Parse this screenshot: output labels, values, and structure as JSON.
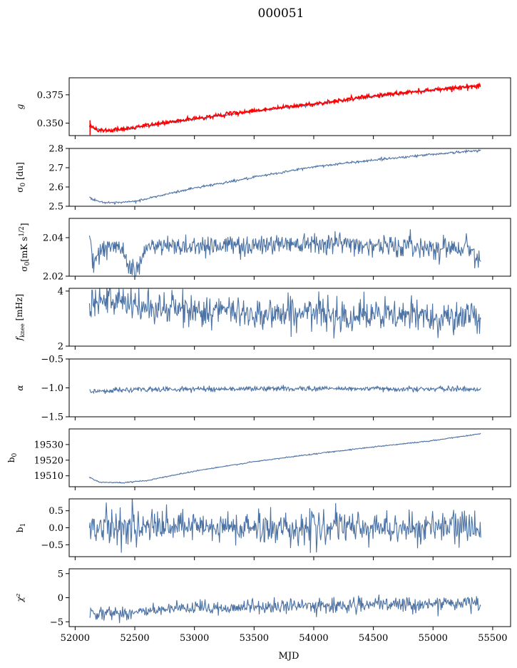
{
  "title": "000051",
  "chart_data": {
    "type": "line",
    "title": "000051",
    "xlabel": "MJD",
    "xlim": [
      51950,
      55650
    ],
    "xticks": [
      52000,
      52500,
      53000,
      53500,
      54000,
      54500,
      55000,
      55500
    ],
    "data_range": [
      52120,
      55400
    ],
    "series_colors": {
      "model": "#4c72a4",
      "fit": "#ff0000"
    },
    "panels": [
      {
        "id": "g",
        "ylabel": "g",
        "ylim": [
          0.339,
          0.39
        ],
        "yticks": [
          0.35,
          0.375
        ],
        "yticklabels": [
          "0.350",
          "0.375"
        ],
        "series": [
          {
            "color_key": "model",
            "anchors": [
              [
                52120,
                0.347
              ],
              [
                52180,
                0.3445
              ],
              [
                52280,
                0.3435
              ],
              [
                52400,
                0.344
              ],
              [
                52600,
                0.3475
              ],
              [
                53000,
                0.3535
              ],
              [
                53500,
                0.3605
              ],
              [
                54000,
                0.3665
              ],
              [
                54500,
                0.3735
              ],
              [
                55000,
                0.3795
              ],
              [
                55400,
                0.3835
              ]
            ],
            "noise": 0.0004
          },
          {
            "color_key": "fit",
            "anchors": [
              [
                52120,
                0.3475
              ],
              [
                52180,
                0.3445
              ],
              [
                52280,
                0.3435
              ],
              [
                52400,
                0.3445
              ],
              [
                52600,
                0.348
              ],
              [
                53000,
                0.354
              ],
              [
                53500,
                0.361
              ],
              [
                54000,
                0.367
              ],
              [
                54500,
                0.374
              ],
              [
                55000,
                0.3795
              ],
              [
                55400,
                0.383
              ]
            ],
            "noise": 0.0009
          }
        ]
      },
      {
        "id": "sigma0-du",
        "ylabel": "σ0 [du]",
        "ylim": [
          2.5,
          2.8
        ],
        "yticks": [
          2.5,
          2.6,
          2.7,
          2.8
        ],
        "yticklabels": [
          "2.5",
          "2.6",
          "2.7",
          "2.8"
        ],
        "series": [
          {
            "color_key": "model",
            "anchors": [
              [
                52120,
                2.545
              ],
              [
                52200,
                2.525
              ],
              [
                52300,
                2.515
              ],
              [
                52500,
                2.525
              ],
              [
                53000,
                2.595
              ],
              [
                53500,
                2.65
              ],
              [
                54000,
                2.705
              ],
              [
                54500,
                2.74
              ],
              [
                55000,
                2.77
              ],
              [
                55400,
                2.79
              ]
            ],
            "noise": 0.003
          }
        ]
      },
      {
        "id": "sigma0-mk",
        "ylabel": "σ0[mK s^1/2]",
        "ylim": [
          2.02,
          2.05
        ],
        "yticks": [
          2.02,
          2.04
        ],
        "yticklabels": [
          "2.02",
          "2.04"
        ],
        "series": [
          {
            "color_key": "model",
            "anchors": [
              [
                52120,
                2.041
              ],
              [
                52160,
                2.028
              ],
              [
                52250,
                2.035
              ],
              [
                52400,
                2.034
              ],
              [
                52500,
                2.021
              ],
              [
                52600,
                2.035
              ],
              [
                53000,
                2.036
              ],
              [
                53500,
                2.036
              ],
              [
                54000,
                2.038
              ],
              [
                54500,
                2.036
              ],
              [
                55000,
                2.035
              ],
              [
                55300,
                2.035
              ],
              [
                55400,
                2.028
              ]
            ],
            "noise": 0.0028
          }
        ]
      },
      {
        "id": "fknee",
        "ylabel": "fknee [mHz]",
        "ylim": [
          2,
          4.1
        ],
        "yticks": [
          2,
          4
        ],
        "yticklabels": [
          "2",
          "4"
        ],
        "series": [
          {
            "color_key": "model",
            "anchors": [
              [
                52120,
                3.8
              ],
              [
                52300,
                3.6
              ],
              [
                52600,
                3.4
              ],
              [
                53000,
                3.3
              ],
              [
                53500,
                3.2
              ],
              [
                54000,
                3.2
              ],
              [
                54500,
                3.1
              ],
              [
                55000,
                3.1
              ],
              [
                55400,
                3.0
              ]
            ],
            "noise": 0.3
          }
        ]
      },
      {
        "id": "alpha",
        "ylabel": "α",
        "ylim": [
          -1.5,
          -0.5
        ],
        "yticks": [
          -1.5,
          -1.0,
          -0.5
        ],
        "yticklabels": [
          "−1.5",
          "−1.0",
          "−0.5"
        ],
        "series": [
          {
            "color_key": "model",
            "anchors": [
              [
                52120,
                -1.06
              ],
              [
                52500,
                -1.03
              ],
              [
                53000,
                -1.02
              ],
              [
                54000,
                -1.01
              ],
              [
                55000,
                -1.02
              ],
              [
                55400,
                -1.02
              ]
            ],
            "noise": 0.022
          }
        ]
      },
      {
        "id": "b0",
        "ylabel": "b0",
        "ylim": [
          19503,
          19540
        ],
        "yticks": [
          19510,
          19520,
          19530
        ],
        "yticklabels": [
          "19510",
          "19520",
          "19530"
        ],
        "series": [
          {
            "color_key": "model",
            "anchors": [
              [
                52120,
                19509
              ],
              [
                52200,
                19506
              ],
              [
                52400,
                19505.5
              ],
              [
                52600,
                19507
              ],
              [
                53000,
                19513
              ],
              [
                53500,
                19519
              ],
              [
                54000,
                19524
              ],
              [
                54500,
                19528.5
              ],
              [
                55000,
                19532.5
              ],
              [
                55400,
                19537
              ]
            ],
            "noise": 0.18
          }
        ]
      },
      {
        "id": "b1",
        "ylabel": "b1",
        "ylim": [
          -0.85,
          0.85
        ],
        "yticks": [
          -0.5,
          0.0,
          0.5
        ],
        "yticklabels": [
          "−0.5",
          "0.0",
          "0.5"
        ],
        "series": [
          {
            "color_key": "model",
            "anchors": [
              [
                52120,
                0.05
              ],
              [
                53000,
                0.0
              ],
              [
                54000,
                0.0
              ],
              [
                55400,
                0.0
              ]
            ],
            "noise": 0.24
          }
        ]
      },
      {
        "id": "chi2",
        "ylabel": "χ²",
        "ylim": [
          -6,
          6
        ],
        "yticks": [
          -5,
          0,
          5
        ],
        "yticklabels": [
          "−5",
          "0",
          "5"
        ],
        "series": [
          {
            "color_key": "model",
            "anchors": [
              [
                52120,
                -3.0
              ],
              [
                52400,
                -3.2
              ],
              [
                52600,
                -2.8
              ],
              [
                53000,
                -2.2
              ],
              [
                53500,
                -1.9
              ],
              [
                54000,
                -1.7
              ],
              [
                54500,
                -1.5
              ],
              [
                55000,
                -1.3
              ],
              [
                55400,
                -1.1
              ]
            ],
            "noise": 0.75
          }
        ]
      }
    ]
  }
}
